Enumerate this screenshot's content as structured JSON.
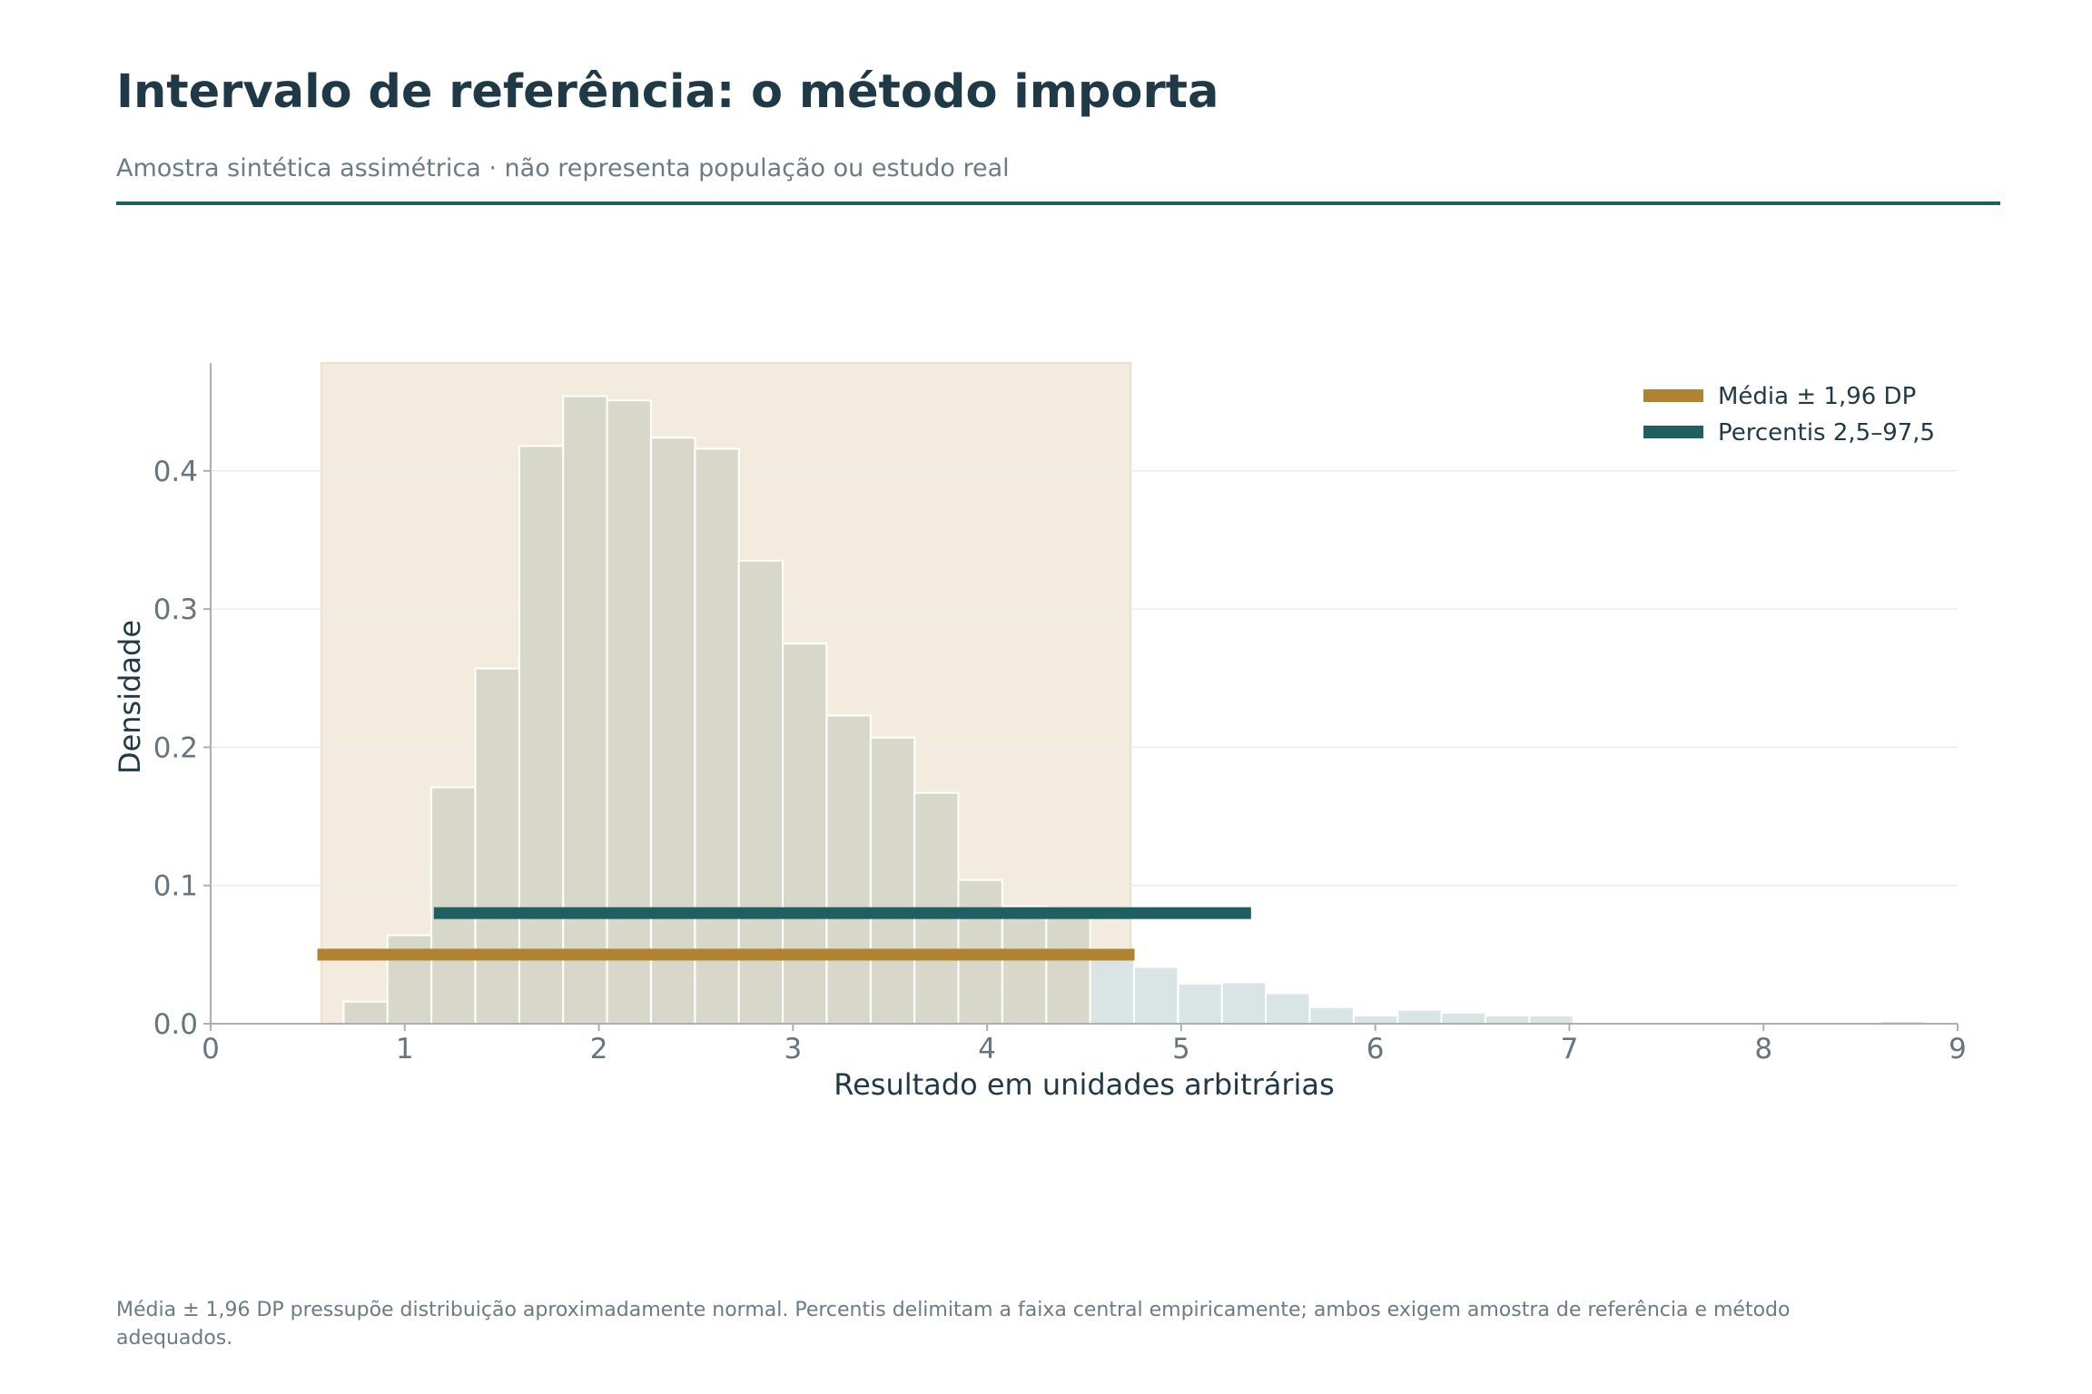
{
  "header": {
    "title": "Intervalo de referência: o método importa",
    "subtitle": "Amostra sintética assimétrica · não representa população ou estudo real"
  },
  "footnote": "Média ± 1,96 DP pressupõe distribuição aproximadamente normal. Percentis delimitam a faixa central empiricamente; ambos exigem amostra de referência e método adequados.",
  "chart_data": {
    "type": "bar",
    "subtype": "histogram",
    "title": "",
    "xlabel": "Resultado em unidades arbitrárias",
    "ylabel": "Densidade",
    "xlim": [
      0,
      9
    ],
    "ylim": [
      0,
      0.478
    ],
    "x_ticks": [
      0,
      1,
      2,
      3,
      4,
      5,
      6,
      7,
      8,
      9
    ],
    "x_tick_labels": [
      "0",
      "1",
      "2",
      "3",
      "4",
      "5",
      "6",
      "7",
      "8",
      "9"
    ],
    "y_ticks": [
      0,
      0.1,
      0.2,
      0.3,
      0.4
    ],
    "y_tick_labels": [
      "0.0",
      "0.1",
      "0.2",
      "0.3",
      "0.4"
    ],
    "grid": "horizontal",
    "legend_position": "top-right",
    "bin_width": 0.2262,
    "bins": [
      {
        "x0": 0.685,
        "value": 0.016
      },
      {
        "x0": 0.911,
        "value": 0.064
      },
      {
        "x0": 1.137,
        "value": 0.171
      },
      {
        "x0": 1.364,
        "value": 0.257
      },
      {
        "x0": 1.59,
        "value": 0.418
      },
      {
        "x0": 1.816,
        "value": 0.454
      },
      {
        "x0": 2.042,
        "value": 0.451
      },
      {
        "x0": 2.269,
        "value": 0.424
      },
      {
        "x0": 2.495,
        "value": 0.416
      },
      {
        "x0": 2.721,
        "value": 0.335
      },
      {
        "x0": 2.947,
        "value": 0.275
      },
      {
        "x0": 3.174,
        "value": 0.223
      },
      {
        "x0": 3.4,
        "value": 0.207
      },
      {
        "x0": 3.626,
        "value": 0.167
      },
      {
        "x0": 3.852,
        "value": 0.104
      },
      {
        "x0": 4.079,
        "value": 0.085
      },
      {
        "x0": 4.305,
        "value": 0.078
      },
      {
        "x0": 4.531,
        "value": 0.054
      },
      {
        "x0": 4.757,
        "value": 0.041
      },
      {
        "x0": 4.984,
        "value": 0.029
      },
      {
        "x0": 5.21,
        "value": 0.03
      },
      {
        "x0": 5.436,
        "value": 0.022
      },
      {
        "x0": 5.662,
        "value": 0.012
      },
      {
        "x0": 5.889,
        "value": 0.006
      },
      {
        "x0": 6.115,
        "value": 0.01
      },
      {
        "x0": 6.341,
        "value": 0.008
      },
      {
        "x0": 6.567,
        "value": 0.006
      },
      {
        "x0": 6.794,
        "value": 0.006
      },
      {
        "x0": 7.02,
        "value": 0.0
      },
      {
        "x0": 7.246,
        "value": 0.001
      },
      {
        "x0": 7.472,
        "value": 0.0
      },
      {
        "x0": 7.699,
        "value": 0.0
      },
      {
        "x0": 7.925,
        "value": 0.0
      },
      {
        "x0": 8.151,
        "value": 0.0
      },
      {
        "x0": 8.377,
        "value": 0.001
      },
      {
        "x0": 8.604,
        "value": 0.002
      }
    ],
    "intervals": [
      {
        "name": "Média ± 1,96 DP",
        "low": 0.55,
        "high": 4.76,
        "y": 0.05,
        "color": "#b08332"
      },
      {
        "name": "Percentis 2,5–97,5",
        "low": 1.15,
        "high": 5.36,
        "y": 0.08,
        "color": "#1f5f62"
      }
    ],
    "shaded_band": {
      "low": 0.57,
      "high": 4.74,
      "color": "#f3ebde"
    },
    "colors": {
      "bar_inside": "#d7d8ca",
      "bar_outside": "#d9e5e4",
      "bar_edge": "#ffffff",
      "axis": "#a8b0b3",
      "grid": "#e9ecec"
    }
  }
}
